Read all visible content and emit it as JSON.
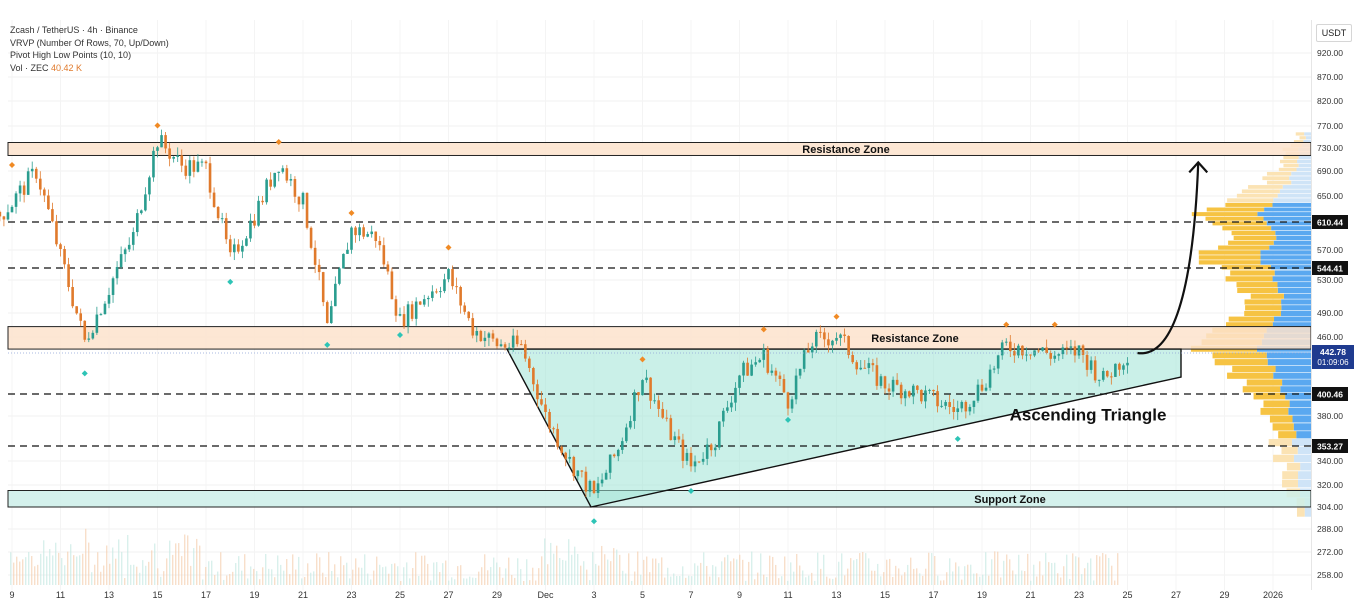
{
  "legend": {
    "title": "Zcash / TetherUS · 4h · Binance",
    "vrvp": "VRVP (Number Of Rows, 70, Up/Down)",
    "pivot": "Pivot High Low Points (10, 10)",
    "vol_label": "Vol · ZEC",
    "vol_value": "40.42 K"
  },
  "axis_unit": "USDT",
  "colors": {
    "up": "#2a9d8f",
    "down": "#e07a2c",
    "zone_fill": "#fde3cd",
    "support_fill": "#cdeee9",
    "triangle_fill": "#9fe3d6",
    "pivot_high": "#f08a24",
    "pivot_low": "#2ec4b6",
    "current_price_bg": "#1f3b8f"
  },
  "chart_data": {
    "type": "candlestick",
    "y_ticks": [
      920.0,
      870.0,
      820.0,
      770.0,
      730.0,
      690.0,
      650.0,
      570.0,
      530.0,
      490.0,
      460.0,
      380.0,
      340.0,
      320.0,
      304.0,
      288.0,
      272.0,
      258.0
    ],
    "x_ticks": [
      "9",
      "11",
      "13",
      "15",
      "17",
      "19",
      "21",
      "23",
      "25",
      "27",
      "29",
      "Dec",
      "3",
      "5",
      "7",
      "9",
      "11",
      "13",
      "15",
      "17",
      "19",
      "21",
      "23",
      "25",
      "27",
      "29",
      "2026"
    ],
    "price_levels": [
      {
        "label": "610.44",
        "value": 610.44
      },
      {
        "label": "544.41",
        "value": 544.41
      },
      {
        "label": "400.46",
        "value": 400.46
      },
      {
        "label": "353.27",
        "value": 353.27
      }
    ],
    "current_price": {
      "label": "442.78",
      "countdown": "01:09:06",
      "value": 442.78
    },
    "zones": [
      {
        "label": "Resistance Zone",
        "low": 717,
        "high": 740
      },
      {
        "label": "Resistance Zone",
        "low": 447,
        "high": 473
      },
      {
        "label": "Support Zone",
        "low": 304,
        "high": 316
      }
    ],
    "annotation": "Ascending Triangle",
    "close_path": [
      {
        "date": "Nov 8",
        "price": 600
      },
      {
        "date": "Nov 9",
        "price": 640
      },
      {
        "date": "Nov 10",
        "price": 690
      },
      {
        "date": "Nov 11",
        "price": 560
      },
      {
        "date": "Nov 12",
        "price": 455
      },
      {
        "date": "Nov 13",
        "price": 520
      },
      {
        "date": "Nov 14",
        "price": 590
      },
      {
        "date": "Nov 15",
        "price": 745
      },
      {
        "date": "Nov 16",
        "price": 700
      },
      {
        "date": "Nov 17",
        "price": 695
      },
      {
        "date": "Nov 18",
        "price": 555
      },
      {
        "date": "Nov 19",
        "price": 620
      },
      {
        "date": "Nov 20",
        "price": 705
      },
      {
        "date": "Nov 21",
        "price": 640
      },
      {
        "date": "Nov 22",
        "price": 470
      },
      {
        "date": "Nov 23",
        "price": 600
      },
      {
        "date": "Nov 24",
        "price": 590
      },
      {
        "date": "Nov 25",
        "price": 480
      },
      {
        "date": "Nov 26",
        "price": 510
      },
      {
        "date": "Nov 27",
        "price": 535
      },
      {
        "date": "Nov 28",
        "price": 470
      },
      {
        "date": "Nov 29",
        "price": 452
      },
      {
        "date": "Nov 30",
        "price": 450
      },
      {
        "date": "Dec 1",
        "price": 380
      },
      {
        "date": "Dec 2",
        "price": 340
      },
      {
        "date": "Dec 3",
        "price": 312
      },
      {
        "date": "Dec 4",
        "price": 350
      },
      {
        "date": "Dec 5",
        "price": 420
      },
      {
        "date": "Dec 6",
        "price": 370
      },
      {
        "date": "Dec 7",
        "price": 335
      },
      {
        "date": "Dec 8",
        "price": 360
      },
      {
        "date": "Dec 9",
        "price": 420
      },
      {
        "date": "Dec 10",
        "price": 440
      },
      {
        "date": "Dec 11",
        "price": 395
      },
      {
        "date": "Dec 12",
        "price": 455
      },
      {
        "date": "Dec 13",
        "price": 462
      },
      {
        "date": "Dec 14",
        "price": 430
      },
      {
        "date": "Dec 15",
        "price": 410
      },
      {
        "date": "Dec 16",
        "price": 405
      },
      {
        "date": "Dec 17",
        "price": 395
      },
      {
        "date": "Dec 18",
        "price": 385
      },
      {
        "date": "Dec 19",
        "price": 410
      },
      {
        "date": "Dec 20",
        "price": 450
      },
      {
        "date": "Dec 21",
        "price": 448
      },
      {
        "date": "Dec 22",
        "price": 440
      },
      {
        "date": "Dec 23",
        "price": 445
      },
      {
        "date": "Dec 24",
        "price": 415
      },
      {
        "date": "Dec 25",
        "price": 442.78
      }
    ],
    "pivot_highs": [
      {
        "date": "Nov 9",
        "price": 690
      },
      {
        "date": "Nov 15",
        "price": 760
      },
      {
        "date": "Nov 20",
        "price": 730
      },
      {
        "date": "Nov 23",
        "price": 615
      },
      {
        "date": "Nov 27",
        "price": 565
      },
      {
        "date": "Dec 5",
        "price": 430
      },
      {
        "date": "Dec 10",
        "price": 462
      },
      {
        "date": "Dec 13",
        "price": 478
      },
      {
        "date": "Dec 20",
        "price": 468
      },
      {
        "date": "Dec 22",
        "price": 468
      }
    ],
    "pivot_lows": [
      {
        "date": "Nov 12",
        "price": 428
      },
      {
        "date": "Nov 18",
        "price": 535
      },
      {
        "date": "Nov 22",
        "price": 458
      },
      {
        "date": "Nov 25",
        "price": 470
      },
      {
        "date": "Dec 3",
        "price": 298
      },
      {
        "date": "Dec 7",
        "price": 320
      },
      {
        "date": "Dec 11",
        "price": 382
      },
      {
        "date": "Dec 18",
        "price": 365
      }
    ]
  }
}
